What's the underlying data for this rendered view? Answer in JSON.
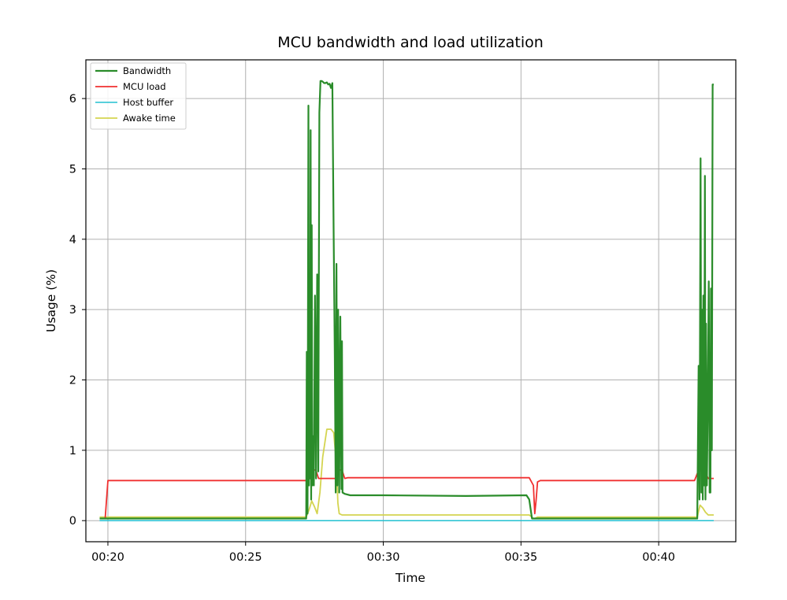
{
  "chart_data": {
    "type": "line",
    "title": "MCU bandwidth and load utilization",
    "xlabel": "Time",
    "ylabel": "Usage (%)",
    "xlim": [
      19.2,
      42.8
    ],
    "ylim": [
      -0.3,
      6.55
    ],
    "x_ticks": [
      20,
      25,
      30,
      35,
      40
    ],
    "x_tick_labels": [
      "00:20",
      "00:25",
      "00:30",
      "00:35",
      "00:40"
    ],
    "y_ticks": [
      0,
      1,
      2,
      3,
      4,
      5,
      6
    ],
    "y_tick_labels": [
      "0",
      "1",
      "2",
      "3",
      "4",
      "5",
      "6"
    ],
    "grid": true,
    "legend_position": "top-left",
    "series": [
      {
        "name": "Bandwidth",
        "color": "#2a8c2a",
        "x": [
          19.7,
          27.2,
          27.22,
          27.25,
          27.28,
          27.3,
          27.32,
          27.34,
          27.36,
          27.38,
          27.4,
          27.42,
          27.45,
          27.48,
          27.52,
          27.56,
          27.6,
          27.64,
          27.68,
          27.72,
          27.76,
          27.8,
          27.85,
          27.9,
          27.95,
          28.0,
          28.05,
          28.1,
          28.15,
          28.2,
          28.24,
          28.27,
          28.3,
          28.33,
          28.36,
          28.4,
          28.44,
          28.48,
          28.5,
          28.52,
          28.6,
          28.8,
          30.0,
          33.0,
          35.2,
          35.3,
          35.4,
          35.5,
          35.6,
          41.4,
          41.45,
          41.48,
          41.52,
          41.55,
          41.58,
          41.6,
          41.62,
          41.65,
          41.68,
          41.7,
          41.72,
          41.75,
          41.78,
          41.82,
          41.85,
          41.88,
          41.9,
          41.93,
          41.96,
          42.0
        ],
        "y": [
          0.03,
          0.03,
          2.4,
          0.1,
          5.9,
          0.5,
          3.15,
          0.6,
          5.55,
          0.3,
          4.2,
          0.5,
          1.2,
          0.5,
          3.2,
          0.6,
          3.5,
          0.7,
          5.8,
          6.25,
          6.25,
          6.24,
          6.22,
          6.22,
          6.23,
          6.2,
          6.21,
          6.15,
          6.22,
          4.0,
          2.3,
          0.4,
          3.65,
          0.5,
          3.0,
          0.4,
          2.9,
          0.45,
          2.55,
          0.4,
          0.38,
          0.36,
          0.36,
          0.35,
          0.36,
          0.3,
          0.03,
          0.03,
          0.03,
          0.03,
          2.2,
          0.3,
          5.15,
          0.4,
          3.0,
          0.3,
          3.2,
          0.5,
          4.9,
          0.3,
          2.8,
          0.5,
          1.5,
          3.4,
          0.4,
          0.4,
          3.3,
          1.0,
          6.2,
          6.2
        ]
      },
      {
        "name": "MCU load",
        "color": "#f03030",
        "x": [
          19.7,
          19.9,
          20.0,
          27.2,
          27.4,
          27.55,
          27.65,
          27.8,
          28.0,
          28.3,
          28.4,
          28.5,
          28.6,
          28.7,
          35.3,
          35.45,
          35.5,
          35.55,
          35.6,
          35.7,
          41.3,
          41.45,
          41.55,
          41.65,
          41.8,
          41.95,
          42.0
        ],
        "y": [
          0.03,
          0.03,
          0.57,
          0.57,
          0.72,
          0.72,
          0.6,
          0.6,
          0.6,
          0.6,
          0.72,
          0.72,
          0.6,
          0.61,
          0.61,
          0.5,
          0.1,
          0.3,
          0.55,
          0.57,
          0.57,
          0.72,
          0.72,
          0.72,
          0.6,
          0.6,
          0.6
        ]
      },
      {
        "name": "Host buffer",
        "color": "#22c0d0",
        "x": [
          19.7,
          42.0
        ],
        "y": [
          0.0,
          0.0
        ]
      },
      {
        "name": "Awake time",
        "color": "#d4d450",
        "x": [
          19.7,
          27.2,
          27.3,
          27.4,
          27.5,
          27.6,
          27.7,
          27.8,
          27.95,
          28.0,
          28.1,
          28.2,
          28.3,
          28.35,
          28.4,
          28.5,
          28.6,
          35.3,
          35.4,
          35.45,
          35.5,
          35.6,
          41.4,
          41.5,
          41.6,
          41.7,
          41.8,
          41.9,
          42.0
        ],
        "y": [
          0.05,
          0.05,
          0.15,
          0.28,
          0.2,
          0.1,
          0.4,
          0.9,
          1.3,
          1.3,
          1.3,
          1.25,
          0.8,
          0.25,
          0.1,
          0.08,
          0.08,
          0.08,
          0.05,
          0.03,
          0.03,
          0.05,
          0.05,
          0.22,
          0.18,
          0.12,
          0.08,
          0.08,
          0.08
        ]
      }
    ]
  }
}
